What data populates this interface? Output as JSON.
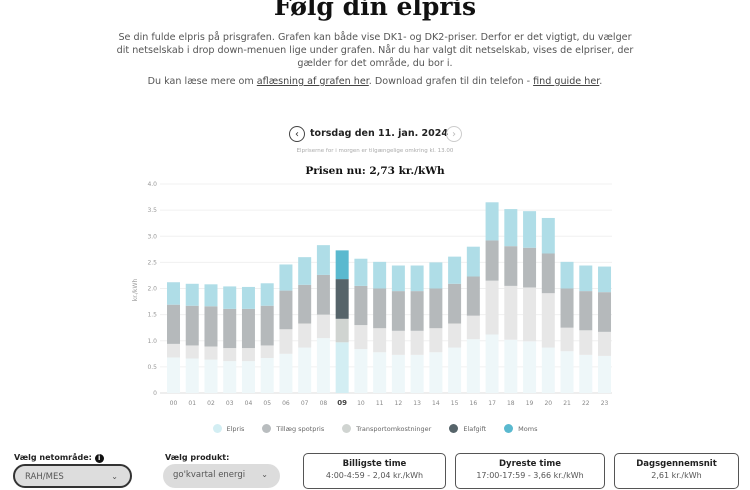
{
  "page": {
    "title": "Følg din elpris",
    "intro": "Se din fulde elpris på prisgrafen. Grafen kan både vise DK1- og DK2-priser. Derfor er det vigtigt, du vælger dit netselskab i drop down-menuen lige under grafen. Når du har valgt dit netselskab, vises de elpriser, der gælder for det område, du bor i.",
    "more_prefix": "Du kan læse mere om ",
    "more_link1": "aflæsning af grafen her",
    "more_middle": ". Download grafen til din telefon - ",
    "more_link2": "find guide her",
    "more_suffix": "."
  },
  "nav": {
    "prev_icon": "chevron-left-icon",
    "next_icon": "chevron-right-icon",
    "date": "torsdag den 11. jan. 2024",
    "note": "Elpriserne for i morgen er tilgængelige omkring kl. 13.00",
    "current_price": "Prisen nu: 2,73 kr./kWh"
  },
  "chart_data": {
    "type": "bar",
    "stacked": true,
    "ylabel": "kr./kWh",
    "ylim": [
      0,
      4.0
    ],
    "yticks": [
      "0",
      "0.5",
      "1.0",
      "1.5",
      "2.0",
      "2.5",
      "3.0",
      "3.5",
      "4.0"
    ],
    "grid": true,
    "legend": "bottom",
    "highlight_category": "09",
    "categories": [
      "00",
      "01",
      "02",
      "03",
      "04",
      "05",
      "06",
      "07",
      "08",
      "09",
      "10",
      "11",
      "12",
      "13",
      "14",
      "15",
      "16",
      "17",
      "18",
      "19",
      "20",
      "21",
      "22",
      "23"
    ],
    "series": [
      {
        "name": "Elpris",
        "color": "#d3eef3",
        "faded": "#eef7f9",
        "values": [
          0.68,
          0.66,
          0.64,
          0.61,
          0.61,
          0.67,
          0.75,
          0.87,
          1.05,
          0.97,
          0.84,
          0.78,
          0.73,
          0.73,
          0.78,
          0.87,
          1.03,
          1.12,
          1.02,
          0.99,
          0.87,
          0.8,
          0.73,
          0.71
        ]
      },
      {
        "name": "Tillæg spotpris",
        "color": "#b9bdbf",
        "faded": "#dfe1e2",
        "values": [
          0,
          0,
          0,
          0,
          0,
          0,
          0,
          0,
          0,
          0,
          0,
          0,
          0,
          0,
          0,
          0,
          0,
          0,
          0,
          0,
          0,
          0,
          0,
          0
        ]
      },
      {
        "name": "Transportomkostninger",
        "color": "#d0d4d1",
        "faded": "#e7e7e7",
        "values": [
          0.26,
          0.25,
          0.25,
          0.25,
          0.25,
          0.24,
          0.47,
          0.46,
          0.45,
          0.45,
          0.46,
          0.46,
          0.46,
          0.46,
          0.46,
          0.46,
          0.45,
          1.03,
          1.03,
          1.03,
          1.04,
          0.45,
          0.47,
          0.46
        ]
      },
      {
        "name": "Elafgift",
        "color": "#56646a",
        "faded": "#b5b9bb",
        "values": [
          0.75,
          0.76,
          0.77,
          0.75,
          0.75,
          0.76,
          0.74,
          0.74,
          0.76,
          0.76,
          0.75,
          0.76,
          0.76,
          0.76,
          0.76,
          0.76,
          0.75,
          0.77,
          0.76,
          0.76,
          0.76,
          0.75,
          0.75,
          0.76
        ]
      },
      {
        "name": "Moms",
        "color": "#5ab9cf",
        "faded": "#afdde7",
        "values": [
          0.43,
          0.42,
          0.42,
          0.43,
          0.42,
          0.43,
          0.5,
          0.53,
          0.57,
          0.55,
          0.52,
          0.51,
          0.49,
          0.49,
          0.5,
          0.52,
          0.57,
          0.73,
          0.71,
          0.7,
          0.68,
          0.51,
          0.49,
          0.49
        ]
      }
    ]
  },
  "controls": {
    "area_label": "Vælg netområde:",
    "area_info_icon": "info-icon",
    "area_value": "RAH/MES",
    "product_label": "Vælg produkt:",
    "product_value": "go'kvartal energi",
    "chevron": "⌄"
  },
  "stats": [
    {
      "title": "Billigste time",
      "value": "4:00-4:59 - 2,04 kr./kWh"
    },
    {
      "title": "Dyreste time",
      "value": "17:00-17:59 - 3,66 kr./kWh"
    },
    {
      "title": "Dagsgennemsnit",
      "value": "2,61 kr./kWh"
    }
  ]
}
